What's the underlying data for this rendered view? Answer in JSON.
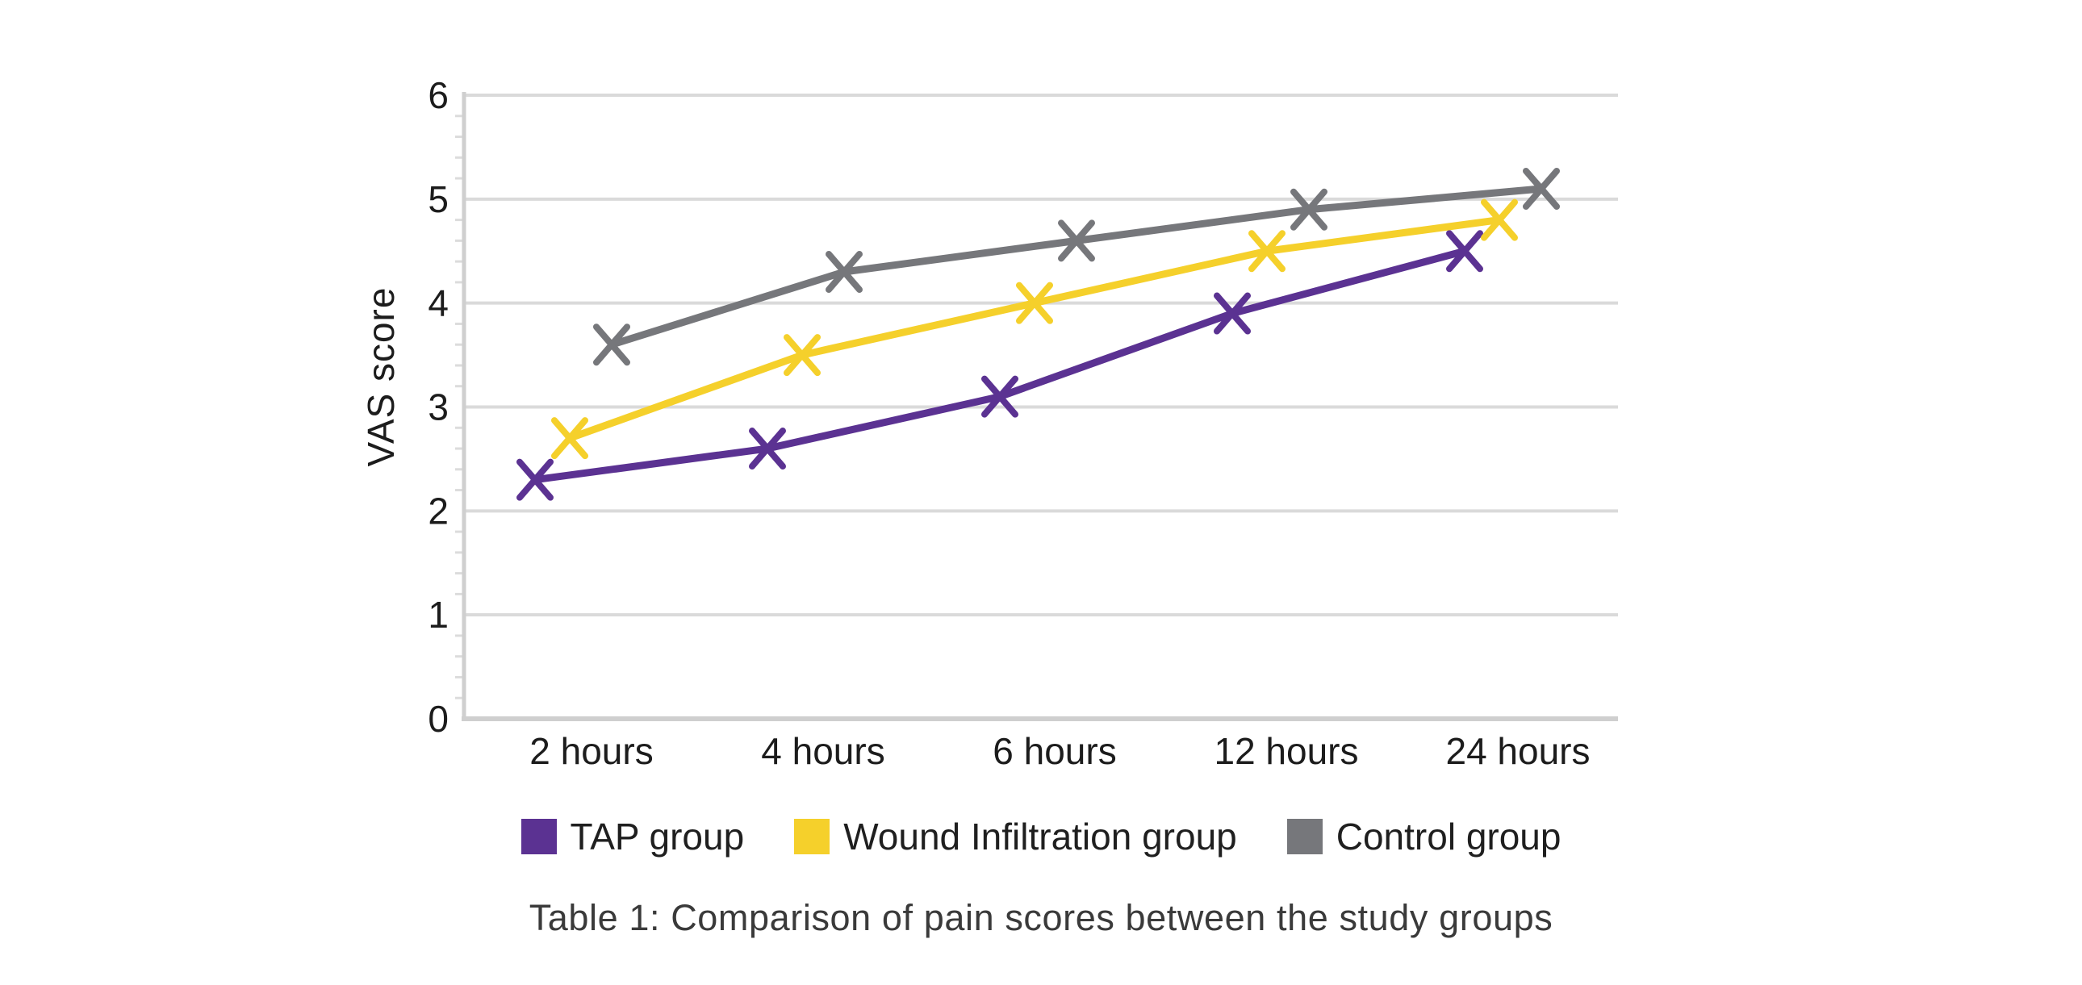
{
  "chart_data": {
    "type": "line",
    "caption": "Table 1: Comparison of pain scores between the study groups",
    "ylabel": "VAS score",
    "xlabel": "",
    "categories": [
      "2 hours",
      "4 hours",
      "6 hours",
      "12 hours",
      "24 hours"
    ],
    "y_ticks": [
      6,
      5,
      4,
      3,
      2,
      1,
      0
    ],
    "ylim": [
      0,
      6
    ],
    "grid": true,
    "legend_position": "bottom",
    "marker": "x",
    "grid_color": "#dadada",
    "axis_color": "#cfcfcf",
    "text_color": "#1c1c1c",
    "caption_color": "#3a3a3a",
    "series": [
      {
        "name": "TAP group",
        "color": "#5B3292",
        "values": [
          2.3,
          2.6,
          3.1,
          3.9,
          4.5
        ]
      },
      {
        "name": "Wound Infiltration group",
        "color": "#F5D02B",
        "values": [
          2.7,
          3.5,
          4.0,
          4.5,
          4.8
        ]
      },
      {
        "name": "Control group",
        "color": "#76777B",
        "values": [
          3.6,
          4.3,
          4.6,
          4.9,
          5.1
        ]
      }
    ]
  }
}
